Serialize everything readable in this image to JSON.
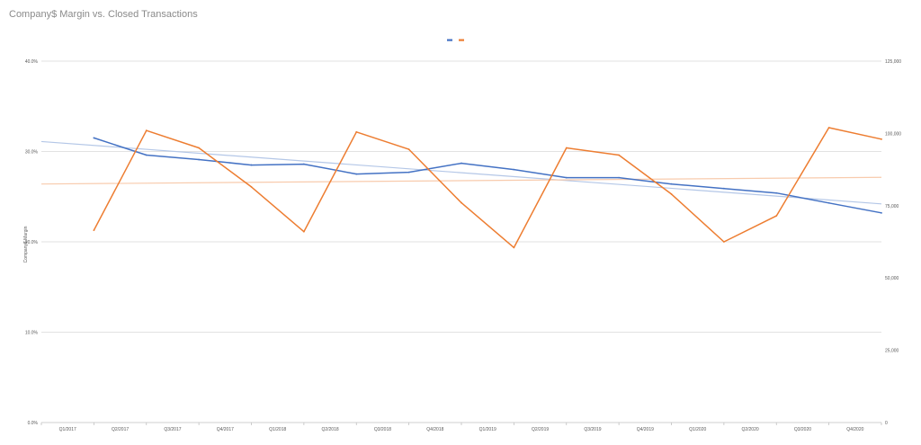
{
  "chart_data": {
    "type": "line",
    "title": "Company$ Margin vs. Closed Transactions",
    "ylabel": "Company$ Margin",
    "y2label": "",
    "categories": [
      "Q1/2017",
      "Q2/2017",
      "Q3/2017",
      "Q4/2017",
      "Q1/2018",
      "Q2/2018",
      "Q3/2018",
      "Q4/2018",
      "Q1/2019",
      "Q2/2019",
      "Q3/2019",
      "Q4/2019",
      "Q1/2020",
      "Q2/2020",
      "Q3/2020",
      "Q4/2020"
    ],
    "ylim": [
      0,
      0.4
    ],
    "y2lim": [
      0,
      125000
    ],
    "y_ticks": [
      "0.0%",
      "10.0%",
      "20.0%",
      "30.0%",
      "40.0%"
    ],
    "y2_ticks": [
      "0",
      "25,000",
      "50,000",
      "75,000",
      "100,000",
      "125,000"
    ],
    "grid": true,
    "legend": "top-center",
    "series": [
      {
        "color": "#4472c4",
        "axis": "left",
        "values": [
          0.315,
          0.296,
          0.291,
          0.285,
          0.286,
          0.275,
          0.277,
          0.287,
          0.28,
          0.271,
          0.271,
          0.264,
          0.259,
          0.254,
          0.243,
          0.232
        ]
      },
      {
        "color": "#ed7d31",
        "axis": "right",
        "values": [
          66500,
          101000,
          95000,
          81500,
          66000,
          100500,
          94500,
          76000,
          60500,
          95000,
          92500,
          79000,
          62500,
          71500,
          102000,
          98000
        ]
      }
    ],
    "trendlines": [
      {
        "color": "#b4c7e7",
        "axis": "left",
        "values": [
          0.311,
          0.242
        ]
      },
      {
        "color": "#f8cbad",
        "axis": "right",
        "values": [
          82500,
          84800
        ]
      }
    ]
  }
}
